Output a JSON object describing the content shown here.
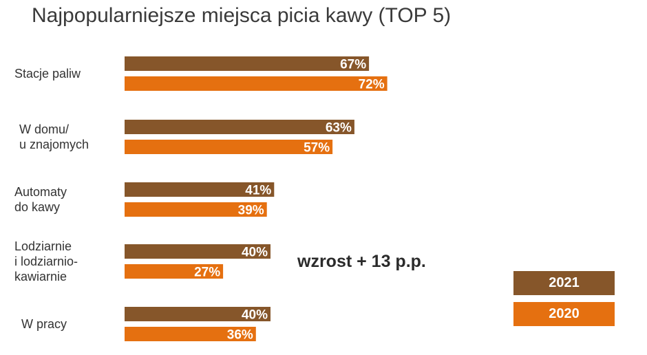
{
  "chart_data": {
    "type": "bar",
    "orientation": "horizontal",
    "title": "Najpopularniejsze miejsca picia kawy (TOP 5)",
    "categories": [
      [
        "Stacje paliw"
      ],
      [
        "W domu/",
        "u znajomych"
      ],
      [
        "Automaty",
        "do kawy"
      ],
      [
        "Lodziarnie",
        "i lodziarnio-",
        "kawiarnie"
      ],
      [
        "W pracy"
      ]
    ],
    "series": [
      {
        "name": "2021",
        "color": "#86562a",
        "values": [
          67,
          63,
          41,
          40,
          40
        ],
        "labels": [
          "67%",
          "63%",
          "41%",
          "40%",
          "40%"
        ]
      },
      {
        "name": "2020",
        "color": "#e57010",
        "values": [
          72,
          57,
          39,
          27,
          36
        ],
        "labels": [
          "72%",
          "57%",
          "39%",
          "27%",
          "36%"
        ]
      }
    ],
    "annotation": "wzrost + 13 p.p.",
    "legend_position": "bottom-right",
    "xlim": [
      0,
      100
    ],
    "grid": false
  }
}
